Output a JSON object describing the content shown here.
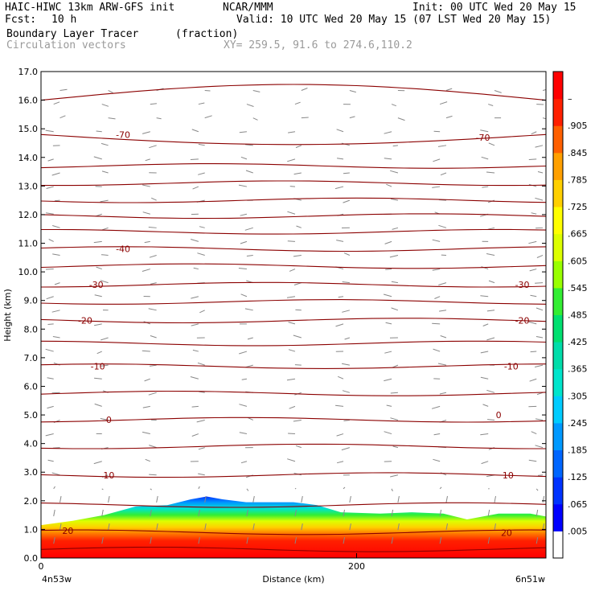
{
  "header": {
    "model": "HAIC-HIWC 13km ARW-GFS init",
    "org": "NCAR/MMM",
    "init": "Init: 00 UTC Wed 20 May 15",
    "fcst_label": "Fcst:",
    "fcst_value": "10 h",
    "valid": "Valid: 10 UTC Wed 20 May 15 (07 LST Wed 20 May 15)",
    "field": "Boundary Layer Tracer",
    "units": "(fraction)",
    "overlay": "Circulation vectors",
    "xy": "XY= 259.5, 91.6 to 274.6,110.2"
  },
  "chart_data": {
    "type": "heatmap",
    "ylabel": "Height (km)",
    "xlabel": "Distance (km)",
    "ylim": [
      0,
      17
    ],
    "yticks": [
      "0.0",
      "1.0",
      "2.0",
      "3.0",
      "4.0",
      "5.0",
      "6.0",
      "7.0",
      "8.0",
      "9.0",
      "10.0",
      "11.0",
      "12.0",
      "13.0",
      "14.0",
      "15.0",
      "16.0",
      "17.0"
    ],
    "xlim": [
      0,
      320
    ],
    "xticks": [
      {
        "x": 0,
        "label": "0"
      },
      {
        "x": 200,
        "label": "200"
      }
    ],
    "left_endpoint": "4n53w",
    "right_endpoint": "6n51w",
    "colorbar": {
      "labels": [
        ".005",
        ".065",
        ".125",
        ".185",
        ".245",
        ".305",
        ".365",
        ".425",
        ".485",
        ".545",
        ".605",
        ".665",
        ".725",
        ".785",
        ".845",
        ".905",
        "–"
      ],
      "colors": [
        "#ffffff",
        "#0000ff",
        "#0033ff",
        "#0066ff",
        "#0099ff",
        "#00ccff",
        "#00e5cc",
        "#00ddaa",
        "#00e070",
        "#33ee33",
        "#99ff00",
        "#ddff00",
        "#ffff00",
        "#ffd000",
        "#ffa000",
        "#ff6000",
        "#ff2000",
        "#ff0000"
      ]
    },
    "temperature_contour_labels": [
      {
        "label": "-70",
        "x": 52,
        "z": 14.8
      },
      {
        "label": "-70",
        "x": 280,
        "z": 14.7
      },
      {
        "label": "-40",
        "x": 52,
        "z": 10.8
      },
      {
        "label": "-30",
        "x": 35,
        "z": 9.55
      },
      {
        "label": "-30",
        "x": 305,
        "z": 9.55
      },
      {
        "label": "-20",
        "x": 28,
        "z": 8.3
      },
      {
        "label": "-20",
        "x": 305,
        "z": 8.3
      },
      {
        "label": "-10",
        "x": 36,
        "z": 6.7
      },
      {
        "label": "-10",
        "x": 298,
        "z": 6.7
      },
      {
        "label": "0",
        "x": 43,
        "z": 4.83
      },
      {
        "label": "0",
        "x": 290,
        "z": 5.0
      },
      {
        "label": "10",
        "x": 43,
        "z": 2.9
      },
      {
        "label": "10",
        "x": 296,
        "z": 2.9
      },
      {
        "label": "20",
        "x": 17,
        "z": 0.95
      },
      {
        "label": "20",
        "x": 295,
        "z": 0.88
      }
    ],
    "contour_heights": [
      0.3,
      0.9,
      1.85,
      2.9,
      3.9,
      4.83,
      5.75,
      6.7,
      7.5,
      8.3,
      8.95,
      9.55,
      10.2,
      10.8,
      11.4,
      11.95,
      12.5,
      13.1,
      13.7,
      14.8,
      16.0
    ],
    "tracer_top": [
      [
        0,
        1.15
      ],
      [
        20,
        1.3
      ],
      [
        40,
        1.5
      ],
      [
        60,
        1.8
      ],
      [
        80,
        1.85
      ],
      [
        95,
        2.05
      ],
      [
        105,
        2.15
      ],
      [
        115,
        2.05
      ],
      [
        130,
        1.95
      ],
      [
        160,
        1.95
      ],
      [
        175,
        1.85
      ],
      [
        190,
        1.6
      ],
      [
        215,
        1.55
      ],
      [
        235,
        1.6
      ],
      [
        255,
        1.55
      ],
      [
        270,
        1.35
      ],
      [
        290,
        1.55
      ],
      [
        310,
        1.55
      ],
      [
        320,
        1.45
      ]
    ]
  }
}
